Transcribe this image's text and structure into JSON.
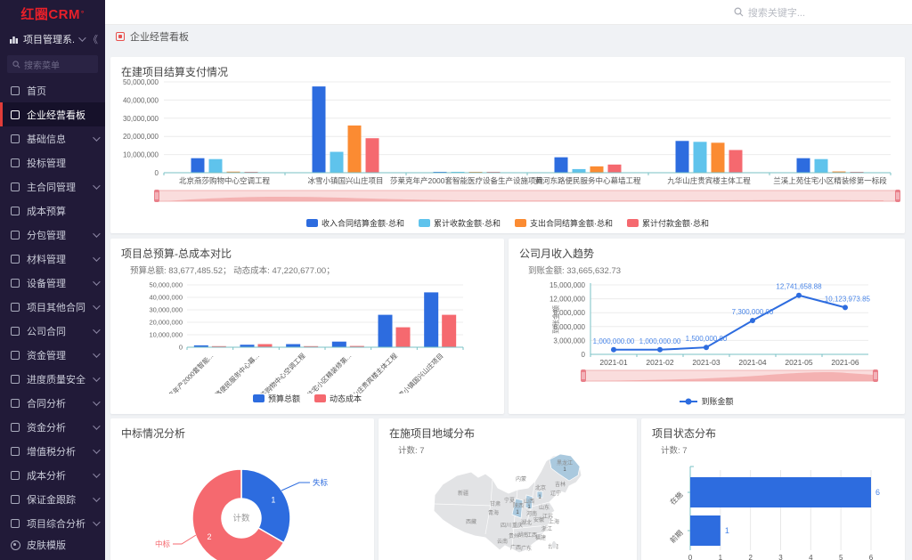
{
  "app": {
    "logo": "红圈CRM",
    "logo_sup": "°",
    "workspace": "项目管理系...",
    "collapse_icon": "《"
  },
  "sidebar": {
    "search_placeholder": "搜索菜单",
    "items": [
      {
        "label": "首页",
        "icon": "home-icon",
        "active": false,
        "chevron": false
      },
      {
        "label": "企业经营看板",
        "icon": "dashboard-icon",
        "active": true,
        "chevron": false
      },
      {
        "label": "基础信息",
        "icon": "info-icon",
        "active": false,
        "chevron": true
      },
      {
        "label": "投标管理",
        "icon": "bid-icon",
        "active": false,
        "chevron": false
      },
      {
        "label": "主合同管理",
        "icon": "contract-icon",
        "active": false,
        "chevron": true
      },
      {
        "label": "成本预算",
        "icon": "budget-icon",
        "active": false,
        "chevron": false
      },
      {
        "label": "分包管理",
        "icon": "folder-icon",
        "active": false,
        "chevron": true
      },
      {
        "label": "材料管理",
        "icon": "folder-icon",
        "active": false,
        "chevron": true
      },
      {
        "label": "设备管理",
        "icon": "folder-icon",
        "active": false,
        "chevron": true
      },
      {
        "label": "项目其他合同",
        "icon": "contract-icon",
        "active": false,
        "chevron": true
      },
      {
        "label": "公司合同",
        "icon": "contract-icon",
        "active": false,
        "chevron": true
      },
      {
        "label": "资金管理",
        "icon": "money-icon",
        "active": false,
        "chevron": true
      },
      {
        "label": "进度质量安全",
        "icon": "folder-icon",
        "active": false,
        "chevron": true
      },
      {
        "label": "合同分析",
        "icon": "doc-icon",
        "active": false,
        "chevron": true
      },
      {
        "label": "资金分析",
        "icon": "doc-icon",
        "active": false,
        "chevron": true
      },
      {
        "label": "增值税分析",
        "icon": "folder-icon",
        "active": false,
        "chevron": true
      },
      {
        "label": "成本分析",
        "icon": "doc-icon",
        "active": false,
        "chevron": true
      },
      {
        "label": "保证金跟踪",
        "icon": "doc-icon",
        "active": false,
        "chevron": true
      },
      {
        "label": "项目综合分析",
        "icon": "folder-icon",
        "active": false,
        "chevron": true
      }
    ],
    "footer": {
      "label": "皮肤模版",
      "icon": "palette-icon"
    }
  },
  "header": {
    "search_placeholder": "搜索关键字..."
  },
  "tabbar": {
    "active_tab": "企业经营看板"
  },
  "colors": {
    "blue": "#2d6cdf",
    "light_blue": "#5fc3ec",
    "orange": "#fb8b32",
    "red": "#f5696f",
    "axis_teal": "#79c2c5",
    "sidebar_bg": "#211a38",
    "accent_red": "#e13c39",
    "datazoom_fill": "#fadddd",
    "datazoom_handle": "#e9808a",
    "map_fill": "#e2e3e5",
    "map_highlight": "#aac9de"
  },
  "chart_data": [
    {
      "id": "settlement",
      "type": "bar",
      "title": "在建项目结算支付情况",
      "categories": [
        "北京燕莎购物中心空调工程",
        "冰雪小镇国兴山庄项目",
        "莎莱克年产2000套智能医疗设备生产设施项目",
        "黄河东路便民服务中心幕墙工程",
        "九华山庄贵宾楼主体工程",
        "兰溪上苑住宅小区精装修第一标段"
      ],
      "series": [
        {
          "name": "收入合同结算金额·总和",
          "color": "#2d6cdf",
          "values": [
            8000000,
            47500000,
            300000,
            8500000,
            17500000,
            8000000
          ]
        },
        {
          "name": "累计收款金额·总和",
          "color": "#5fc3ec",
          "values": [
            7500000,
            11500000,
            300000,
            2000000,
            17000000,
            7500000
          ]
        },
        {
          "name": "支出合同结算金额·总和",
          "color": "#fb8b32",
          "values": [
            600000,
            26000000,
            250000,
            3500000,
            16500000,
            700000
          ]
        },
        {
          "name": "累计付款金额·总和",
          "color": "#f5696f",
          "values": [
            250000,
            19000000,
            250000,
            4500000,
            12500000,
            300000
          ]
        }
      ],
      "ylim": [
        0,
        50000000
      ],
      "ytick_step": 10000000,
      "grid": true,
      "datazoom": true,
      "legend_position": "bottom"
    },
    {
      "id": "budget",
      "type": "bar",
      "title": "项目总预算-总成本对比",
      "subtitle": "预算总额: 83,677,485.52；   动态成本: 47,220,677.00；",
      "categories": [
        "莎莱克年产2000套智能...",
        "黄河东路便民服务中心幕...",
        "北京燕莎购物中心空调工程",
        "兰溪上苑住宅小区精装修第...",
        "九华山庄贵宾楼主体工程",
        "冰雪小镇国兴山庄项目"
      ],
      "series": [
        {
          "name": "预算总额",
          "color": "#2d6cdf",
          "values": [
            1500000,
            2000000,
            2500000,
            4500000,
            26000000,
            44000000
          ]
        },
        {
          "name": "动态成本",
          "color": "#f5696f",
          "values": [
            300000,
            2500000,
            500000,
            1000000,
            16000000,
            26000000
          ]
        }
      ],
      "ylim": [
        0,
        50000000
      ],
      "ytick_step": 10000000,
      "grid": true,
      "label_rotate": -45,
      "legend_position": "bottom"
    },
    {
      "id": "income",
      "type": "line",
      "title": "公司月收入趋势",
      "subtitle": "到账金额: 33,665,632.73",
      "ylabel": "到账金额",
      "x": [
        "2021-01",
        "2021-02",
        "2021-03",
        "2021-04",
        "2021-05",
        "2021-06"
      ],
      "series": [
        {
          "name": "到账金额",
          "color": "#2d6cdf",
          "values": [
            1000000,
            1000000,
            1500000,
            7300000,
            12741658.88,
            10123973.85
          ],
          "labels": [
            "1,000,000.00",
            "1,000,000.00",
            "1,500,000.00",
            "7,300,000.00",
            "12,741,658.88",
            "10,123,973.85"
          ]
        }
      ],
      "ylim": [
        0,
        15000000
      ],
      "ytick_step": 3000000,
      "grid": true,
      "datazoom": true,
      "legend_position": "bottom"
    },
    {
      "id": "bid",
      "type": "pie",
      "title": "中标情况分析",
      "center_label": "计数",
      "slices": [
        {
          "name": "失标",
          "value": 1,
          "color": "#2d6cdf"
        },
        {
          "name": "中标",
          "value": 2,
          "color": "#f5696f"
        }
      ]
    },
    {
      "id": "region",
      "type": "map",
      "title": "在施项目地域分布",
      "subtitle": "计数: 7",
      "highlighted": [
        {
          "name": "黑龙江",
          "value": 1
        },
        {
          "name": "北京",
          "value": 1
        },
        {
          "name": "山西",
          "value": 1
        },
        {
          "name": "陕西",
          "value": 1
        }
      ],
      "province_labels": [
        "新疆",
        "内蒙",
        "黑龙江",
        "吉林",
        "辽宁",
        "甘肃",
        "宁夏",
        "山西",
        "陕西",
        "青海",
        "山东",
        "河南",
        "江苏",
        "安徽",
        "上海",
        "湖北",
        "浙江",
        "四川",
        "重庆",
        "西藏",
        "云南",
        "贵州",
        "湖南",
        "江西",
        "福建",
        "广西",
        "广东",
        "台湾",
        "北京"
      ]
    },
    {
      "id": "status",
      "type": "bar-horizontal",
      "title": "项目状态分布",
      "subtitle": "计数: 7",
      "categories": [
        "在施",
        "前期"
      ],
      "values": [
        6,
        1
      ],
      "color": "#2d6cdf",
      "xlim": [
        0,
        6
      ],
      "xticks": [
        0,
        1,
        2,
        3,
        4,
        5,
        6
      ],
      "grid": true
    }
  ]
}
